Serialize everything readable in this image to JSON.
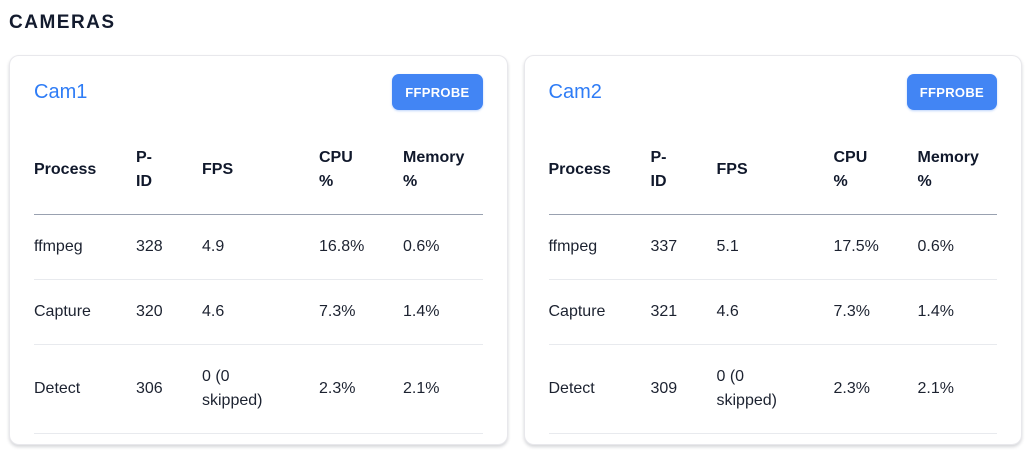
{
  "page_title": "CAMERAS",
  "colors": {
    "title_link_blue": "#2e7cf6",
    "button_blue": "#4285f4",
    "heading_dark": "#131b2e",
    "header_divider": "#99a1b0",
    "row_divider": "#e8eaee"
  },
  "table": {
    "columns": [
      "Process",
      "P-ID",
      "FPS",
      "CPU %",
      "Memory %"
    ]
  },
  "cards": [
    {
      "title": "Cam1",
      "button_label": "FFPROBE",
      "rows": [
        {
          "process": "ffmpeg",
          "pid": "328",
          "fps": "4.9",
          "cpu": "16.8%",
          "memory": "0.6%"
        },
        {
          "process": "Capture",
          "pid": "320",
          "fps": "4.6",
          "cpu": "7.3%",
          "memory": "1.4%"
        },
        {
          "process": "Detect",
          "pid": "306",
          "fps": "0 (0 skipped)",
          "cpu": "2.3%",
          "memory": "2.1%"
        }
      ]
    },
    {
      "title": "Cam2",
      "button_label": "FFPROBE",
      "rows": [
        {
          "process": "ffmpeg",
          "pid": "337",
          "fps": "5.1",
          "cpu": "17.5%",
          "memory": "0.6%"
        },
        {
          "process": "Capture",
          "pid": "321",
          "fps": "4.6",
          "cpu": "7.3%",
          "memory": "1.4%"
        },
        {
          "process": "Detect",
          "pid": "309",
          "fps": "0 (0 skipped)",
          "cpu": "2.3%",
          "memory": "2.1%"
        }
      ]
    }
  ]
}
